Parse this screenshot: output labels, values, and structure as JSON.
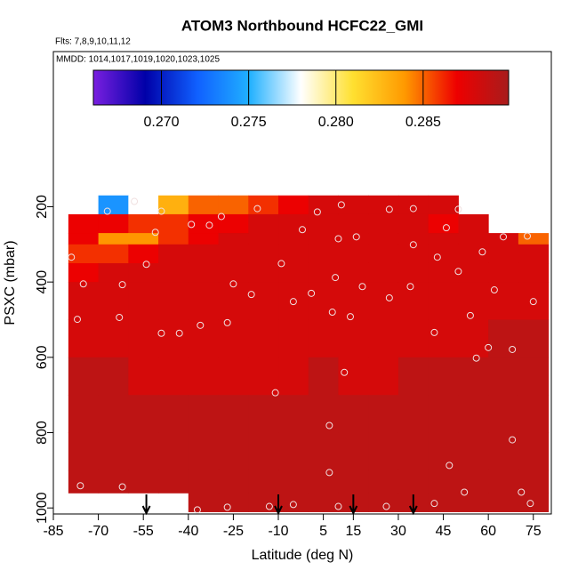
{
  "chart_data": {
    "type": "heatmap",
    "title": "ATOM3 Northbound HCFC22_GMI",
    "subtitle": "Flts: 7,8,9,10,11,12",
    "annotation": "MMDD: 1014,1017,1019,1020,1023,1025",
    "x_label": "Latitude (deg N)",
    "y_label": "PSXC (mbar)",
    "xlim": [
      -85,
      81
    ],
    "ylim": [
      1016,
      -212
    ],
    "xticks": [
      -85,
      -70,
      -55,
      -40,
      -25,
      -10,
      5,
      15,
      30,
      45,
      60,
      75
    ],
    "yticks": [
      200,
      400,
      600,
      800,
      1000
    ],
    "clim": [
      0.2661,
      0.2899
    ],
    "cticks": [
      {
        "value": 0.27,
        "label": "0.270"
      },
      {
        "value": 0.275,
        "label": "0.275"
      },
      {
        "value": 0.28,
        "label": "0.280"
      },
      {
        "value": 0.285,
        "label": "0.285"
      }
    ],
    "colors": [
      "#7a1fe0",
      "#0000a8",
      "#1060ff",
      "#20b0ff",
      "#ffffff",
      "#ffe030",
      "#ff9900",
      "#ee0000",
      "#a81c1c"
    ],
    "x_edges": [
      -80,
      -70,
      -60,
      -50,
      -40,
      -30,
      -20,
      -10,
      0,
      10,
      20,
      30,
      40,
      50,
      60,
      70,
      80
    ],
    "y_edges": [
      170,
      220,
      270,
      300,
      350,
      400,
      500,
      600,
      700,
      800,
      900,
      960,
      1010
    ],
    "z": [
      [
        null,
        0.274,
        0.278,
        0.283,
        0.285,
        0.285,
        0.286,
        0.287,
        0.288,
        0.288,
        0.288,
        0.288,
        0.288,
        null,
        null,
        null
      ],
      [
        0.287,
        0.287,
        0.286,
        0.286,
        0.287,
        0.287,
        0.288,
        0.288,
        0.288,
        0.288,
        0.288,
        0.288,
        0.287,
        0.288,
        null,
        null
      ],
      [
        0.287,
        0.284,
        0.284,
        0.286,
        0.287,
        0.288,
        0.288,
        0.288,
        0.288,
        0.288,
        0.288,
        0.288,
        0.288,
        0.288,
        0.288,
        0.285
      ],
      [
        0.286,
        0.286,
        0.287,
        0.288,
        0.288,
        0.288,
        0.288,
        0.288,
        0.288,
        0.288,
        0.288,
        0.288,
        0.288,
        0.288,
        0.288,
        0.288
      ],
      [
        0.287,
        0.288,
        0.288,
        0.288,
        0.288,
        0.288,
        0.288,
        0.288,
        0.288,
        0.288,
        0.288,
        0.288,
        0.288,
        0.288,
        0.288,
        0.288
      ],
      [
        0.288,
        0.288,
        0.288,
        0.288,
        0.288,
        0.288,
        0.288,
        0.288,
        0.288,
        0.288,
        0.288,
        0.288,
        0.288,
        0.288,
        0.288,
        0.288
      ],
      [
        0.288,
        0.288,
        0.288,
        0.288,
        0.288,
        0.288,
        0.288,
        0.288,
        0.288,
        0.288,
        0.288,
        0.288,
        0.288,
        0.288,
        0.289,
        0.289
      ],
      [
        0.289,
        0.289,
        0.288,
        0.288,
        0.288,
        0.288,
        0.288,
        0.288,
        0.289,
        0.288,
        0.288,
        0.289,
        0.289,
        0.289,
        0.289,
        0.289
      ],
      [
        0.289,
        0.289,
        0.289,
        0.289,
        0.289,
        0.289,
        0.289,
        0.289,
        0.289,
        0.289,
        0.289,
        0.289,
        0.289,
        0.289,
        0.289,
        0.289
      ],
      [
        0.289,
        0.289,
        0.289,
        0.289,
        0.289,
        0.289,
        0.289,
        0.289,
        0.289,
        0.289,
        0.289,
        0.289,
        0.289,
        0.289,
        0.289,
        0.289
      ],
      [
        0.289,
        0.289,
        0.289,
        0.289,
        0.289,
        0.289,
        0.289,
        0.289,
        0.289,
        0.289,
        0.289,
        0.289,
        0.289,
        0.289,
        0.289,
        0.289
      ],
      [
        null,
        null,
        null,
        null,
        0.289,
        0.289,
        0.289,
        0.289,
        0.289,
        0.289,
        0.289,
        0.289,
        0.289,
        0.289,
        0.289,
        0.289
      ]
    ],
    "points": {
      "x": [
        -58,
        -67,
        -49,
        -29,
        -17,
        3,
        11,
        27,
        35,
        50,
        -39,
        -51,
        -33,
        -2,
        10,
        16,
        35,
        46,
        65,
        73,
        -79,
        -54,
        -9,
        43,
        58,
        -75,
        -62,
        -25,
        -19,
        -5,
        1,
        9,
        18,
        34,
        50,
        62,
        75,
        -77,
        -63,
        -49,
        -43,
        -36,
        -27,
        8,
        14,
        27,
        42,
        54,
        56,
        60,
        68,
        -11,
        12,
        7,
        68,
        -76,
        -62,
        7,
        47,
        52,
        71,
        -27,
        -13,
        -5,
        10,
        26,
        42,
        74,
        -37
      ],
      "y": [
        186,
        212,
        212,
        226,
        205,
        214,
        195,
        207,
        205,
        207,
        247,
        268,
        249,
        261,
        285,
        280,
        301,
        256,
        280,
        278,
        334,
        353,
        351,
        334,
        320,
        405,
        407,
        405,
        433,
        452,
        430,
        388,
        412,
        412,
        372,
        421,
        452,
        499,
        494,
        536,
        536,
        515,
        508,
        480,
        492,
        442,
        534,
        489,
        602,
        574,
        579,
        694,
        640,
        781,
        819,
        941,
        944,
        906,
        887,
        958,
        958,
        998,
        996,
        991,
        996,
        996,
        988,
        988,
        1005
      ]
    },
    "arrows": [
      -54,
      -10,
      15,
      35
    ]
  }
}
